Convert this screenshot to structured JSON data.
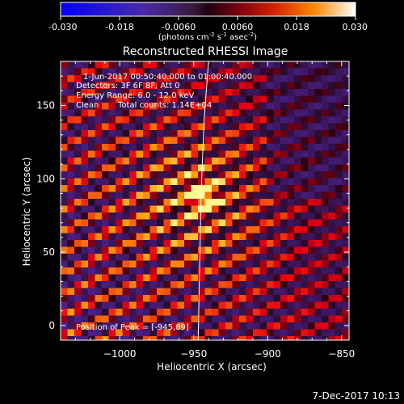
{
  "colorbar": {
    "ticks": [
      "-0.030",
      "-0.018",
      "-0.0060",
      "0.0060",
      "0.018",
      "0.030"
    ],
    "tick_values": [
      -0.03,
      -0.018,
      -0.006,
      0.006,
      0.018,
      0.03
    ],
    "range": [
      -0.03,
      0.03
    ],
    "units_pre": "(photons cm",
    "units_exp1": "-2",
    "units_mid1": " s",
    "units_exp2": "-1",
    "units_mid2": " asec",
    "units_exp3": "-2",
    "units_post": ")"
  },
  "chart_data": {
    "type": "heatmap",
    "title": "Reconstructed RHESSI Image",
    "xlabel": "Heliocentric X (arcsec)",
    "ylabel": "Heliocentric Y (arcsec)",
    "xlim": [
      -1040,
      -845
    ],
    "ylim": [
      -10,
      180
    ],
    "xticks": [
      -1000,
      -950,
      -900,
      -850
    ],
    "xtick_labels": [
      "−1000",
      "−950",
      "−900",
      "−850"
    ],
    "yticks": [
      0,
      50,
      100,
      150
    ],
    "ytick_labels": [
      "0",
      "50",
      "100",
      "150"
    ],
    "annotations": {
      "time": "1-Jun-2017 00:50:40.000 to 01:00:40.000",
      "detectors": "Detectors: 3F 6F 8F, Att 0",
      "energy": "Energy Range: 6.0 - 12.0 keV",
      "clean": "Clean",
      "counts": "Total counts: 1.14E+04",
      "peak": "Position of Peak = [-945,89]"
    },
    "peak": {
      "x": -945,
      "y": 89
    },
    "limb": {
      "description": "solar limb curve",
      "points": [
        [
          -947,
          -10
        ],
        [
          -946,
          40
        ],
        [
          -945,
          90
        ],
        [
          -943,
          140
        ],
        [
          -940,
          180
        ]
      ]
    },
    "grid": false
  },
  "footer": {
    "date": "7-Dec-2017 10:13"
  }
}
